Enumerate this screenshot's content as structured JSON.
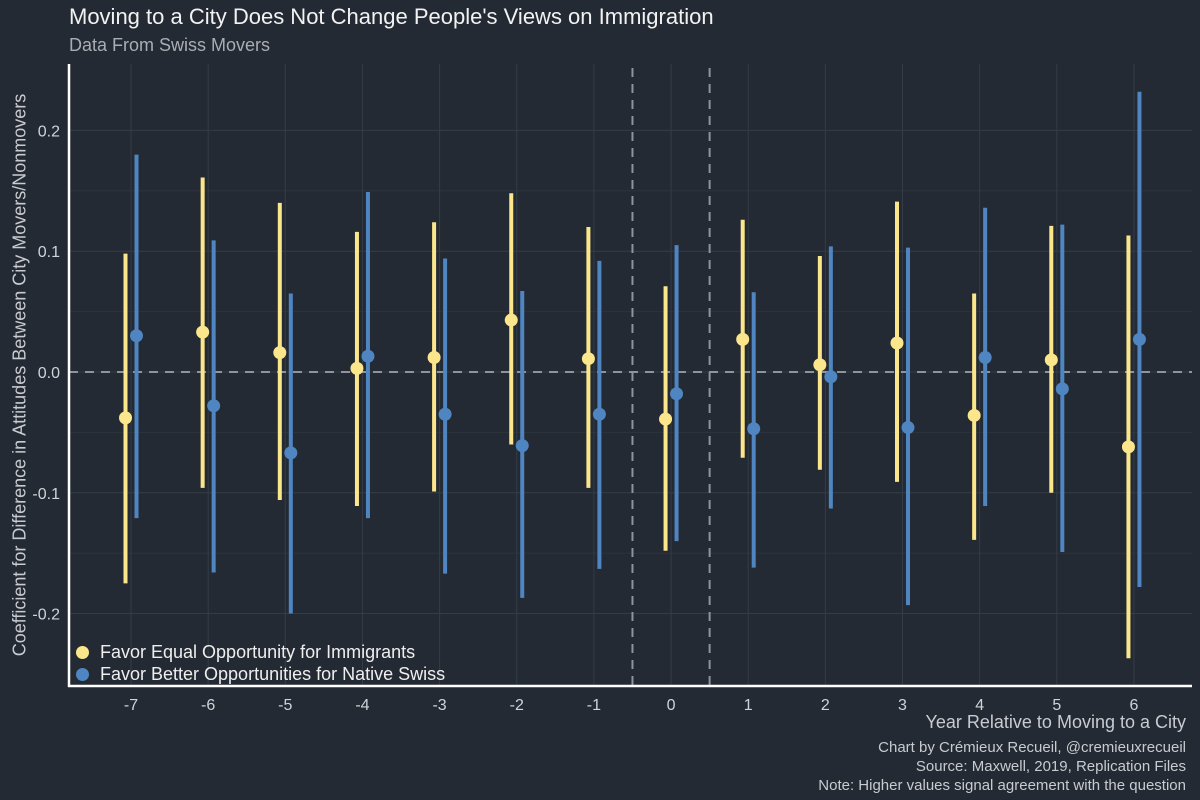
{
  "chart_data": {
    "type": "scatter",
    "title": "Moving to a City Does Not Change People's Views on Immigration",
    "subtitle": "Data From Swiss Movers",
    "xlabel": "Year Relative to Moving to a City",
    "ylabel": "Coefficient for Difference in Attitudes Between City Movers/Nonmovers",
    "categories": [
      "-7",
      "-6",
      "-5",
      "-4",
      "-3",
      "-2",
      "-1",
      "0",
      "1",
      "2",
      "3",
      "4",
      "5",
      "6"
    ],
    "ylim": [
      -0.26,
      0.255
    ],
    "yticks": [
      -0.2,
      -0.1,
      0.0,
      0.1,
      0.2
    ],
    "ytick_labels": [
      "-0.2",
      "-0.1",
      "0.0",
      "0.1",
      "0.2"
    ],
    "reference_lines": {
      "horizontal_y": 0.0,
      "vertical_between": [
        [
          "-1",
          "0"
        ],
        [
          "0",
          "1"
        ]
      ]
    },
    "grid": true,
    "legend_position": "bottom-left",
    "series": [
      {
        "name": "Favor Equal Opportunity for Immigrants",
        "color": "#fce68c",
        "points": [
          {
            "x": "-7",
            "y": -0.038,
            "lo": -0.175,
            "hi": 0.098
          },
          {
            "x": "-6",
            "y": 0.033,
            "lo": -0.096,
            "hi": 0.161
          },
          {
            "x": "-5",
            "y": 0.016,
            "lo": -0.106,
            "hi": 0.14
          },
          {
            "x": "-4",
            "y": 0.003,
            "lo": -0.111,
            "hi": 0.116
          },
          {
            "x": "-3",
            "y": 0.012,
            "lo": -0.099,
            "hi": 0.124
          },
          {
            "x": "-2",
            "y": 0.043,
            "lo": -0.06,
            "hi": 0.148
          },
          {
            "x": "-1",
            "y": 0.011,
            "lo": -0.096,
            "hi": 0.12
          },
          {
            "x": "0",
            "y": -0.039,
            "lo": -0.148,
            "hi": 0.071
          },
          {
            "x": "1",
            "y": 0.027,
            "lo": -0.071,
            "hi": 0.126
          },
          {
            "x": "2",
            "y": 0.006,
            "lo": -0.081,
            "hi": 0.096
          },
          {
            "x": "3",
            "y": 0.024,
            "lo": -0.091,
            "hi": 0.141
          },
          {
            "x": "4",
            "y": -0.036,
            "lo": -0.139,
            "hi": 0.065
          },
          {
            "x": "5",
            "y": 0.01,
            "lo": -0.1,
            "hi": 0.121
          },
          {
            "x": "6",
            "y": -0.062,
            "lo": -0.237,
            "hi": 0.113
          }
        ]
      },
      {
        "name": "Favor Better Opportunities for Native Swiss",
        "color": "#4f86c1",
        "points": [
          {
            "x": "-7",
            "y": 0.03,
            "lo": -0.121,
            "hi": 0.18
          },
          {
            "x": "-6",
            "y": -0.028,
            "lo": -0.166,
            "hi": 0.109
          },
          {
            "x": "-5",
            "y": -0.067,
            "lo": -0.2,
            "hi": 0.065
          },
          {
            "x": "-4",
            "y": 0.013,
            "lo": -0.121,
            "hi": 0.149
          },
          {
            "x": "-3",
            "y": -0.035,
            "lo": -0.167,
            "hi": 0.094
          },
          {
            "x": "-2",
            "y": -0.061,
            "lo": -0.187,
            "hi": 0.067
          },
          {
            "x": "-1",
            "y": -0.035,
            "lo": -0.163,
            "hi": 0.092
          },
          {
            "x": "0",
            "y": -0.018,
            "lo": -0.14,
            "hi": 0.105
          },
          {
            "x": "1",
            "y": -0.047,
            "lo": -0.162,
            "hi": 0.066
          },
          {
            "x": "2",
            "y": -0.004,
            "lo": -0.113,
            "hi": 0.104
          },
          {
            "x": "3",
            "y": -0.046,
            "lo": -0.193,
            "hi": 0.103
          },
          {
            "x": "4",
            "y": 0.012,
            "lo": -0.111,
            "hi": 0.136
          },
          {
            "x": "5",
            "y": -0.014,
            "lo": -0.149,
            "hi": 0.122
          },
          {
            "x": "6",
            "y": 0.027,
            "lo": -0.178,
            "hi": 0.232
          }
        ]
      }
    ],
    "captions": [
      "Chart by Crémieux Recueil, @cremieuxrecueil",
      "Source: Maxwell, 2019, Replication Files",
      "Note: Higher values signal agreement with the question"
    ]
  }
}
